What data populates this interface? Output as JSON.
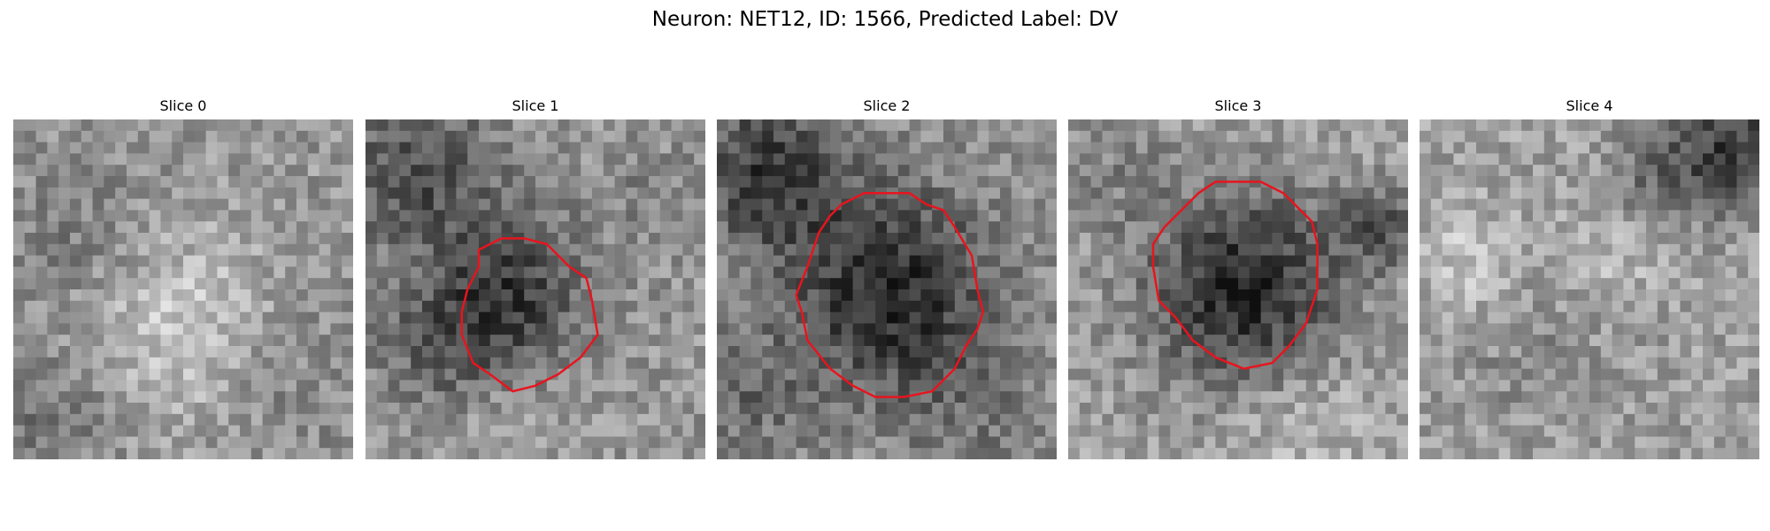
{
  "figure": {
    "title": "Neuron: NET12, ID: 1566, Predicted Label: DV",
    "contour_color": "#e8141e"
  },
  "panels": [
    {
      "title": "Slice 0",
      "has_contour": false,
      "seed": 11,
      "blobs": []
    },
    {
      "title": "Slice 1",
      "has_contour": true,
      "seed": 23,
      "blobs": []
    },
    {
      "title": "Slice 2",
      "has_contour": true,
      "seed": 37,
      "blobs": []
    },
    {
      "title": "Slice 3",
      "has_contour": true,
      "seed": 51,
      "blobs": []
    },
    {
      "title": "Slice 4",
      "has_contour": false,
      "seed": 67,
      "blobs": []
    }
  ]
}
